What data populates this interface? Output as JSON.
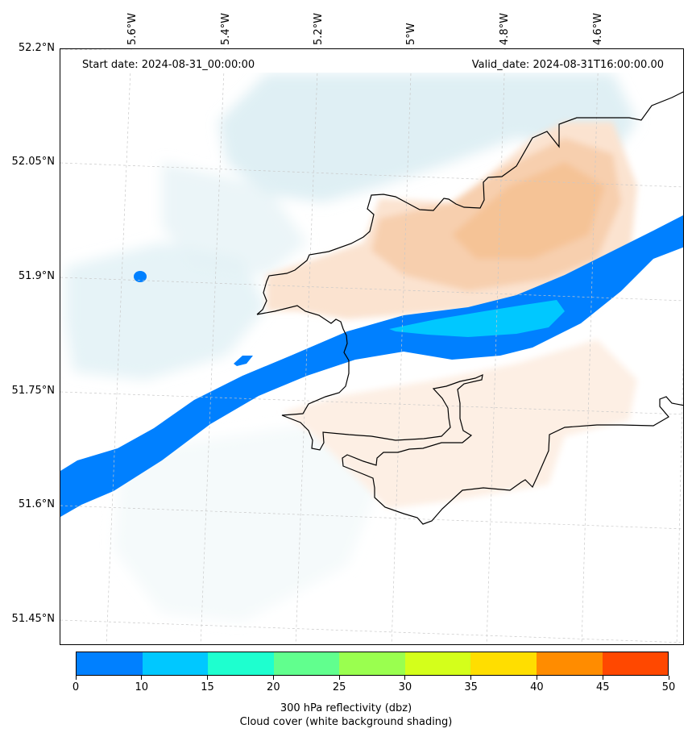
{
  "map": {
    "start_date": "Start date: 2024-08-31_00:00:00",
    "valid_date": "Valid_date: 2024-08-31T16:00:00.00",
    "lon_labels": [
      "5.6°W",
      "5.4°W",
      "5.2°W",
      "5°W",
      "4.8°W",
      "4.6°W"
    ],
    "lat_labels": [
      "52.2°N",
      "52.05°N",
      "51.9°N",
      "51.75°N",
      "51.6°N",
      "51.45°N"
    ],
    "extent": {
      "lon_min": -5.75,
      "lon_max": -4.4,
      "lat_min": 51.42,
      "lat_max": 52.2
    },
    "reflectivity_band": {
      "value_range_dbz": "0-15",
      "colors": [
        "#0080ff",
        "#00c8ff"
      ]
    },
    "cloud_cover_colors": {
      "low": "#d4eaf0",
      "warm": "#f5c396",
      "light_warm": "#fbe8d8"
    },
    "coastline_color": "#000000"
  },
  "colorbar": {
    "boundaries": [
      "0",
      "10",
      "15",
      "20",
      "25",
      "30",
      "35",
      "40",
      "45",
      "50"
    ],
    "colors": [
      "#0080ff",
      "#00c8ff",
      "#1effcf",
      "#61ff8e",
      "#9aff4f",
      "#d4ff1b",
      "#ffde00",
      "#ff8c00",
      "#ff4800"
    ],
    "title_line1": "300 hPa reflectivity (dbz)",
    "title_line2": "Cloud cover (white background shading)"
  }
}
